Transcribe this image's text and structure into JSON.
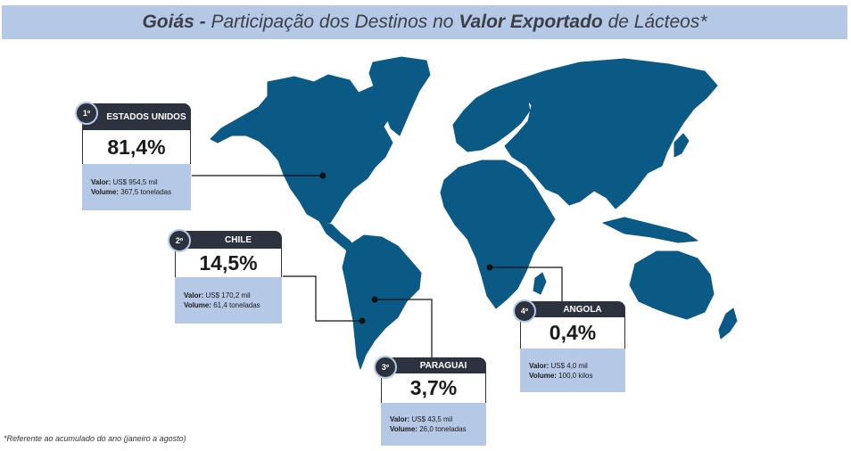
{
  "title": {
    "region": "Goiás",
    "sep": " - ",
    "part1": "Participação dos Destinos no ",
    "emph": "Valor Exportado",
    "part2": " de Lácteos*"
  },
  "colors": {
    "land": "#0b5a86",
    "banner": "#b5c9e6",
    "card_header": "#2c333f"
  },
  "destinations": [
    {
      "rank": "1º",
      "name": "ESTADOS UNIDOS",
      "share": "81,4%",
      "value_label": "Valor:",
      "value": " US$ 954,5 mil",
      "volume_label": "Volume:",
      "volume": " 367,5 toneladas"
    },
    {
      "rank": "2º",
      "name": "CHILE",
      "share": "14,5%",
      "value_label": "Valor:",
      "value": " US$ 170,2 mil",
      "volume_label": "Volume:",
      "volume": " 61,4 toneladas"
    },
    {
      "rank": "3º",
      "name": "PARAGUAI",
      "share": "3,7%",
      "value_label": "Valor:",
      "value": " US$ 43,5 mil",
      "volume_label": "Volume:",
      "volume": " 26,0 toneladas"
    },
    {
      "rank": "4º",
      "name": "ANGOLA",
      "share": "0,4%",
      "value_label": "Valor:",
      "value": " US$ 4,0 mil",
      "volume_label": "Volume:",
      "volume": " 100,0 kilos"
    }
  ],
  "footnote": "*Referente ao acumulado do ano (janeiro a agosto)"
}
